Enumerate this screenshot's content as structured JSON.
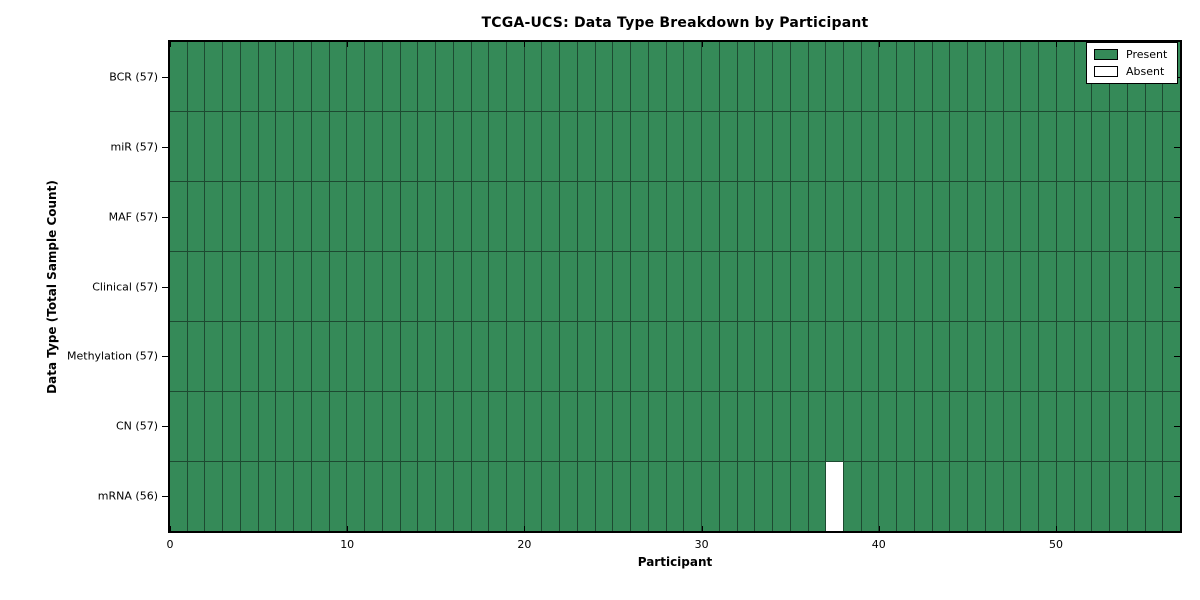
{
  "chart_data": {
    "type": "heatmap",
    "title": "TCGA-UCS: Data Type Breakdown by Participant",
    "xlabel": "Participant",
    "ylabel": "Data Type (Total Sample Count)",
    "x_range": [
      0,
      57
    ],
    "x_ticks": [
      0,
      10,
      20,
      30,
      40,
      50
    ],
    "n_participants": 57,
    "grid": true,
    "legend_position": "upper right",
    "rows": [
      {
        "label": "BCR (57)",
        "data_type": "BCR",
        "present_count": 57,
        "absent_participants": []
      },
      {
        "label": "miR (57)",
        "data_type": "miR",
        "present_count": 57,
        "absent_participants": []
      },
      {
        "label": "MAF (57)",
        "data_type": "MAF",
        "present_count": 57,
        "absent_participants": []
      },
      {
        "label": "Clinical (57)",
        "data_type": "Clinical",
        "present_count": 57,
        "absent_participants": []
      },
      {
        "label": "Methylation (57)",
        "data_type": "Methylation",
        "present_count": 57,
        "absent_participants": []
      },
      {
        "label": "CN (57)",
        "data_type": "CN",
        "present_count": 57,
        "absent_participants": []
      },
      {
        "label": "mRNA (56)",
        "data_type": "mRNA",
        "present_count": 56,
        "absent_participants": [
          37
        ]
      }
    ],
    "legend": [
      {
        "label": "Present",
        "color": "#358a58"
      },
      {
        "label": "Absent",
        "color": "#ffffff"
      }
    ],
    "colors": {
      "present": "#358a58",
      "absent": "#ffffff",
      "grid_line": "#1d4a31",
      "spine": "#000000"
    }
  }
}
